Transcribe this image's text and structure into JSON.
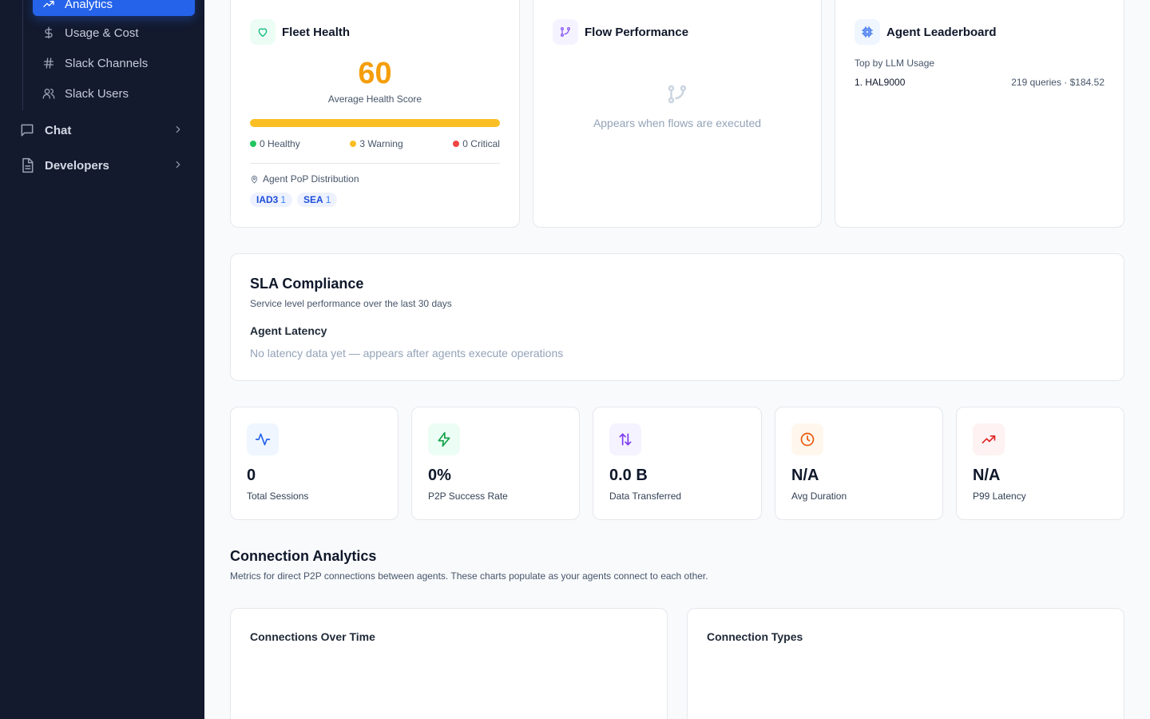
{
  "sidebar": {
    "active_item": "Analytics",
    "sub_items": [
      {
        "label": "Usage & Cost",
        "icon": "dollar-icon"
      },
      {
        "label": "Slack Channels",
        "icon": "hash-icon"
      },
      {
        "label": "Slack Users",
        "icon": "users-icon"
      }
    ],
    "groups": [
      {
        "label": "Chat",
        "icon": "chat-icon"
      },
      {
        "label": "Developers",
        "icon": "document-icon"
      }
    ]
  },
  "fleet_health": {
    "title": "Fleet Health",
    "score": "60",
    "score_label": "Average Health Score",
    "healthy": "0 Healthy",
    "warning": "3 Warning",
    "critical": "0 Critical",
    "pop_label": "Agent PoP Distribution",
    "pops": [
      {
        "code": "IAD3",
        "count": "1"
      },
      {
        "code": "SEA",
        "count": "1"
      }
    ],
    "colors": {
      "score": "#f59e0b",
      "healthy": "#22c55e",
      "warning": "#fbbf24",
      "critical": "#ef4444"
    }
  },
  "flow_performance": {
    "title": "Flow Performance",
    "empty_text": "Appears when flows are executed"
  },
  "leaderboard": {
    "title": "Agent Leaderboard",
    "subtitle": "Top by LLM Usage",
    "rows": [
      {
        "name": "1. HAL9000",
        "stats": "219 queries · $184.52"
      }
    ]
  },
  "sla": {
    "title": "SLA Compliance",
    "subtitle": "Service level performance over the last 30 days",
    "section": "Agent Latency",
    "empty_text": "No latency data yet — appears after agents execute operations"
  },
  "stats": [
    {
      "value": "0",
      "label": "Total Sessions",
      "icon": "activity-icon"
    },
    {
      "value": "0%",
      "label": "P2P Success Rate",
      "icon": "zap-icon"
    },
    {
      "value": "0.0 B",
      "label": "Data Transferred",
      "icon": "arrows-updown-icon"
    },
    {
      "value": "N/A",
      "label": "Avg Duration",
      "icon": "clock-icon"
    },
    {
      "value": "N/A",
      "label": "P99 Latency",
      "icon": "trending-up-icon"
    }
  ],
  "connection_analytics": {
    "title": "Connection Analytics",
    "subtitle": "Metrics for direct P2P connections between agents. These charts populate as your agents connect to each other.",
    "charts": [
      {
        "title": "Connections Over Time"
      },
      {
        "title": "Connection Types"
      }
    ]
  }
}
